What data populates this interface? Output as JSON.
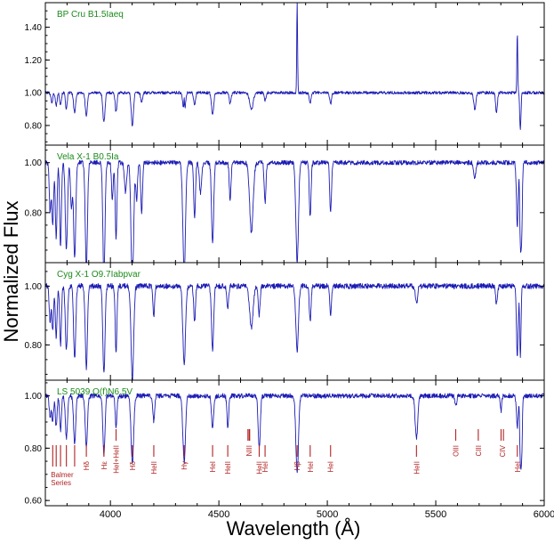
{
  "chart_data": {
    "type": "line",
    "xlabel": "Wavelength (Å)",
    "ylabel": "Normalized Flux",
    "xlim": [
      3700,
      6000
    ],
    "x_ticks": [
      4000,
      4500,
      5000,
      5500,
      6000
    ],
    "panels": [
      {
        "name": "BP Cru B1.5Iaeq",
        "ylim": [
          0.68,
          1.55
        ],
        "y_ticks": [
          "0.80",
          "1.00",
          "1.20",
          "1.40"
        ],
        "features": [
          [
            3730,
            -0.06,
            4
          ],
          [
            3750,
            -0.08,
            4
          ],
          [
            3770,
            -0.07,
            4
          ],
          [
            3797,
            -0.1,
            4
          ],
          [
            3835,
            -0.12,
            5
          ],
          [
            3889,
            -0.14,
            5
          ],
          [
            3970,
            -0.18,
            5
          ],
          [
            4026,
            -0.12,
            4
          ],
          [
            4101,
            -0.2,
            5
          ],
          [
            4144,
            -0.06,
            4
          ],
          [
            4340,
            -0.15,
            5
          ],
          [
            4340,
            0.12,
            2
          ],
          [
            4388,
            -0.08,
            4
          ],
          [
            4471,
            -0.13,
            5
          ],
          [
            4552,
            -0.07,
            4
          ],
          [
            4650,
            -0.1,
            8
          ],
          [
            4713,
            -0.05,
            4
          ],
          [
            4861,
            0.55,
            2
          ],
          [
            4921,
            -0.06,
            4
          ],
          [
            5015,
            -0.07,
            4
          ],
          [
            5680,
            -0.1,
            5
          ],
          [
            5780,
            -0.12,
            4
          ],
          [
            5876,
            0.36,
            2
          ],
          [
            5890,
            -0.22,
            3
          ]
        ]
      },
      {
        "name": "Vela X-1  B0.5Ia",
        "ylim": [
          0.6,
          1.07
        ],
        "y_ticks": [
          "0.80",
          "1.00"
        ],
        "features": [
          [
            3722,
            -0.2,
            4
          ],
          [
            3734,
            -0.25,
            4
          ],
          [
            3750,
            -0.3,
            4
          ],
          [
            3770,
            -0.33,
            4
          ],
          [
            3797,
            -0.35,
            5
          ],
          [
            3820,
            -0.18,
            4
          ],
          [
            3835,
            -0.38,
            5
          ],
          [
            3889,
            -0.42,
            5
          ],
          [
            3970,
            -0.45,
            5
          ],
          [
            4009,
            -0.15,
            4
          ],
          [
            4026,
            -0.3,
            4
          ],
          [
            4070,
            -0.12,
            5
          ],
          [
            4101,
            -0.48,
            6
          ],
          [
            4121,
            -0.15,
            4
          ],
          [
            4144,
            -0.2,
            4
          ],
          [
            4340,
            -0.44,
            6
          ],
          [
            4388,
            -0.22,
            4
          ],
          [
            4415,
            -0.12,
            5
          ],
          [
            4471,
            -0.32,
            5
          ],
          [
            4552,
            -0.15,
            4
          ],
          [
            4650,
            -0.28,
            8
          ],
          [
            4713,
            -0.16,
            4
          ],
          [
            4861,
            -0.4,
            6
          ],
          [
            4921,
            -0.22,
            4
          ],
          [
            5015,
            -0.2,
            4
          ],
          [
            5680,
            -0.06,
            5
          ],
          [
            5876,
            -0.25,
            4
          ],
          [
            5890,
            -0.3,
            3
          ],
          [
            5896,
            -0.28,
            3
          ]
        ]
      },
      {
        "name": "Cyg X-1  O9.7Iabpvar",
        "ylim": [
          0.68,
          1.08
        ],
        "y_ticks": [
          "0.80",
          "1.00"
        ],
        "features": [
          [
            3722,
            -0.12,
            4
          ],
          [
            3734,
            -0.15,
            4
          ],
          [
            3750,
            -0.18,
            4
          ],
          [
            3770,
            -0.2,
            4
          ],
          [
            3797,
            -0.22,
            5
          ],
          [
            3835,
            -0.25,
            5
          ],
          [
            3889,
            -0.28,
            5
          ],
          [
            3970,
            -0.3,
            5
          ],
          [
            4026,
            -0.22,
            4
          ],
          [
            4101,
            -0.32,
            6
          ],
          [
            4200,
            -0.1,
            4
          ],
          [
            4340,
            -0.27,
            6
          ],
          [
            4388,
            -0.12,
            4
          ],
          [
            4471,
            -0.22,
            5
          ],
          [
            4541,
            -0.08,
            4
          ],
          [
            4650,
            -0.14,
            8
          ],
          [
            4686,
            -0.1,
            4
          ],
          [
            4861,
            -0.22,
            6
          ],
          [
            4921,
            -0.12,
            4
          ],
          [
            5015,
            -0.1,
            4
          ],
          [
            5411,
            -0.06,
            5
          ],
          [
            5780,
            -0.06,
            4
          ],
          [
            5876,
            -0.24,
            4
          ],
          [
            5890,
            -0.24,
            3
          ]
        ]
      },
      {
        "name": "LS 5039  O(f)N6.5V",
        "ylim": [
          0.58,
          1.06
        ],
        "y_ticks": [
          "0.60",
          "0.80",
          "1.00"
        ],
        "features": [
          [
            3722,
            -0.08,
            4
          ],
          [
            3734,
            -0.1,
            4
          ],
          [
            3750,
            -0.12,
            4
          ],
          [
            3770,
            -0.13,
            4
          ],
          [
            3797,
            -0.16,
            5
          ],
          [
            3835,
            -0.18,
            5
          ],
          [
            3889,
            -0.2,
            5
          ],
          [
            3970,
            -0.22,
            5
          ],
          [
            4026,
            -0.12,
            4
          ],
          [
            4101,
            -0.26,
            6
          ],
          [
            4200,
            -0.1,
            4
          ],
          [
            4340,
            -0.25,
            6
          ],
          [
            4471,
            -0.12,
            5
          ],
          [
            4541,
            -0.12,
            4
          ],
          [
            4686,
            -0.2,
            5
          ],
          [
            4861,
            -0.3,
            6
          ],
          [
            5411,
            -0.16,
            6
          ],
          [
            5592,
            -0.04,
            4
          ],
          [
            5801,
            -0.06,
            3
          ],
          [
            5876,
            -0.12,
            4
          ],
          [
            5890,
            -0.24,
            3
          ],
          [
            5896,
            -0.22,
            3
          ]
        ],
        "line_marks": [
          {
            "wl": [
              3734,
              3750,
              3770,
              3797,
              3835
            ],
            "label_lines": [
              "Balmer",
              "Series"
            ]
          },
          {
            "wl": [
              3889
            ],
            "label": "Hδ"
          },
          {
            "wl": [
              3970
            ],
            "label": "Hε"
          },
          {
            "wl": [
              4026
            ],
            "label": "HeI+HeII"
          },
          {
            "wl": [
              4101
            ],
            "label": "Hδ"
          },
          {
            "wl": [
              4200
            ],
            "label": "HeII"
          },
          {
            "wl": [
              4340
            ],
            "label": "Hγ"
          },
          {
            "wl": [
              4471
            ],
            "label": "HeI"
          },
          {
            "wl": [
              4541
            ],
            "label": "HeII"
          },
          {
            "wl": [
              4634,
              4640,
              4642
            ],
            "label": "NIII"
          },
          {
            "wl": [
              4686
            ],
            "label": "HeII"
          },
          {
            "wl": [
              4713
            ],
            "label": "HeI"
          },
          {
            "wl": [
              4861
            ],
            "label": "Hβ"
          },
          {
            "wl": [
              4921
            ],
            "label": "HeI"
          },
          {
            "wl": [
              5015
            ],
            "label": "HeI"
          },
          {
            "wl": [
              5411
            ],
            "label": "HeII"
          },
          {
            "wl": [
              5592
            ],
            "label": "OIII"
          },
          {
            "wl": [
              5696
            ],
            "label": "CIII"
          },
          {
            "wl": [
              5801,
              5812
            ],
            "label": "CIV"
          },
          {
            "wl": [
              5876
            ],
            "label": "HeI"
          }
        ]
      }
    ]
  },
  "colors": {
    "spectrum": "#1c1cb4",
    "panel_title": "#1a8a1a",
    "line_marks": "#b22222"
  }
}
